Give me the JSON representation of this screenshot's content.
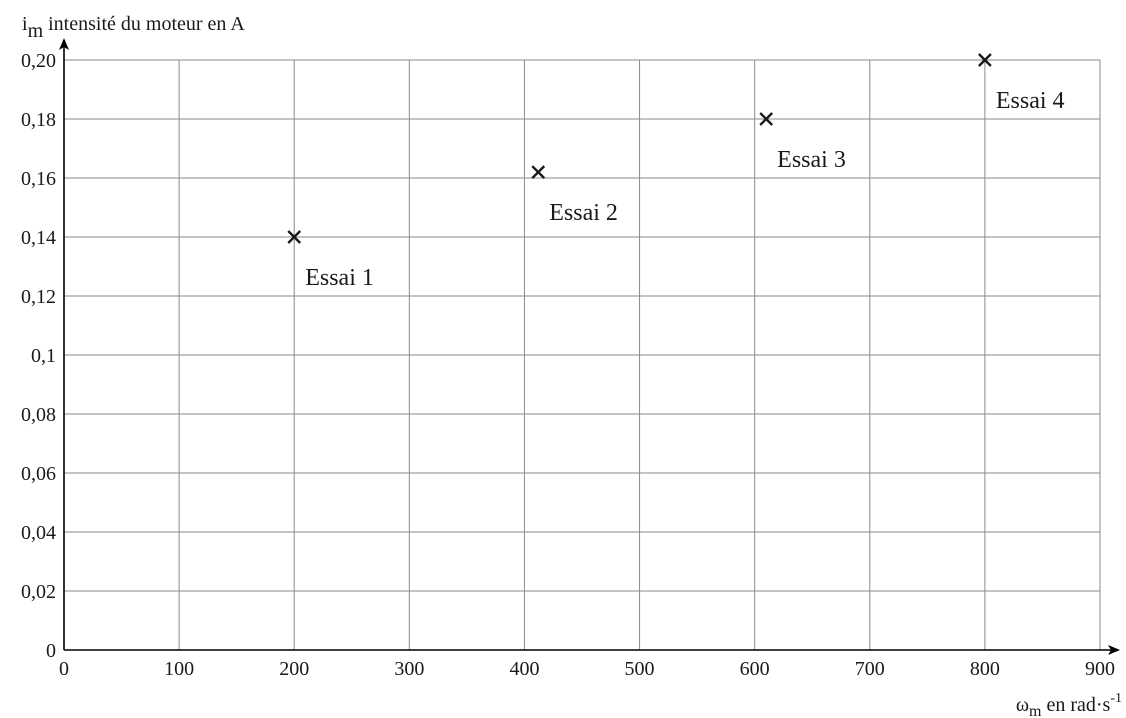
{
  "chart_data": {
    "type": "scatter",
    "title": "",
    "xlabel_main": "ω",
    "xlabel_sub": "m",
    "xlabel_rest": " en rad·s",
    "xlabel_sup": "-1",
    "ylabel_main": "i",
    "ylabel_sub": "m",
    "ylabel_rest": " intensité du moteur en A",
    "xlim": [
      0,
      900
    ],
    "ylim": [
      0,
      0.2
    ],
    "x_ticks": [
      0,
      100,
      200,
      300,
      400,
      500,
      600,
      700,
      800,
      900
    ],
    "x_tick_labels": [
      "0",
      "100",
      "200",
      "300",
      "400",
      "500",
      "600",
      "700",
      "800",
      "900"
    ],
    "y_ticks": [
      0,
      0.02,
      0.04,
      0.06,
      0.08,
      0.1,
      0.12,
      0.14,
      0.16,
      0.18,
      0.2
    ],
    "y_tick_labels": [
      "0",
      "0,02",
      "0,04",
      "0,06",
      "0,08",
      "0,1",
      "0,12",
      "0,14",
      "0,16",
      "0,18",
      "0,20"
    ],
    "grid": true,
    "marker": "x",
    "points": [
      {
        "x": 200,
        "y": 0.14,
        "label": "Essai 1"
      },
      {
        "x": 412,
        "y": 0.162,
        "label": "Essai 2"
      },
      {
        "x": 610,
        "y": 0.18,
        "label": "Essai 3"
      },
      {
        "x": 800,
        "y": 0.2,
        "label": "Essai 4"
      }
    ],
    "colors": {
      "axis": "#000000",
      "grid": "#8a8a8a",
      "marker": "#1a1a1a",
      "text": "#1a1a1a"
    }
  }
}
